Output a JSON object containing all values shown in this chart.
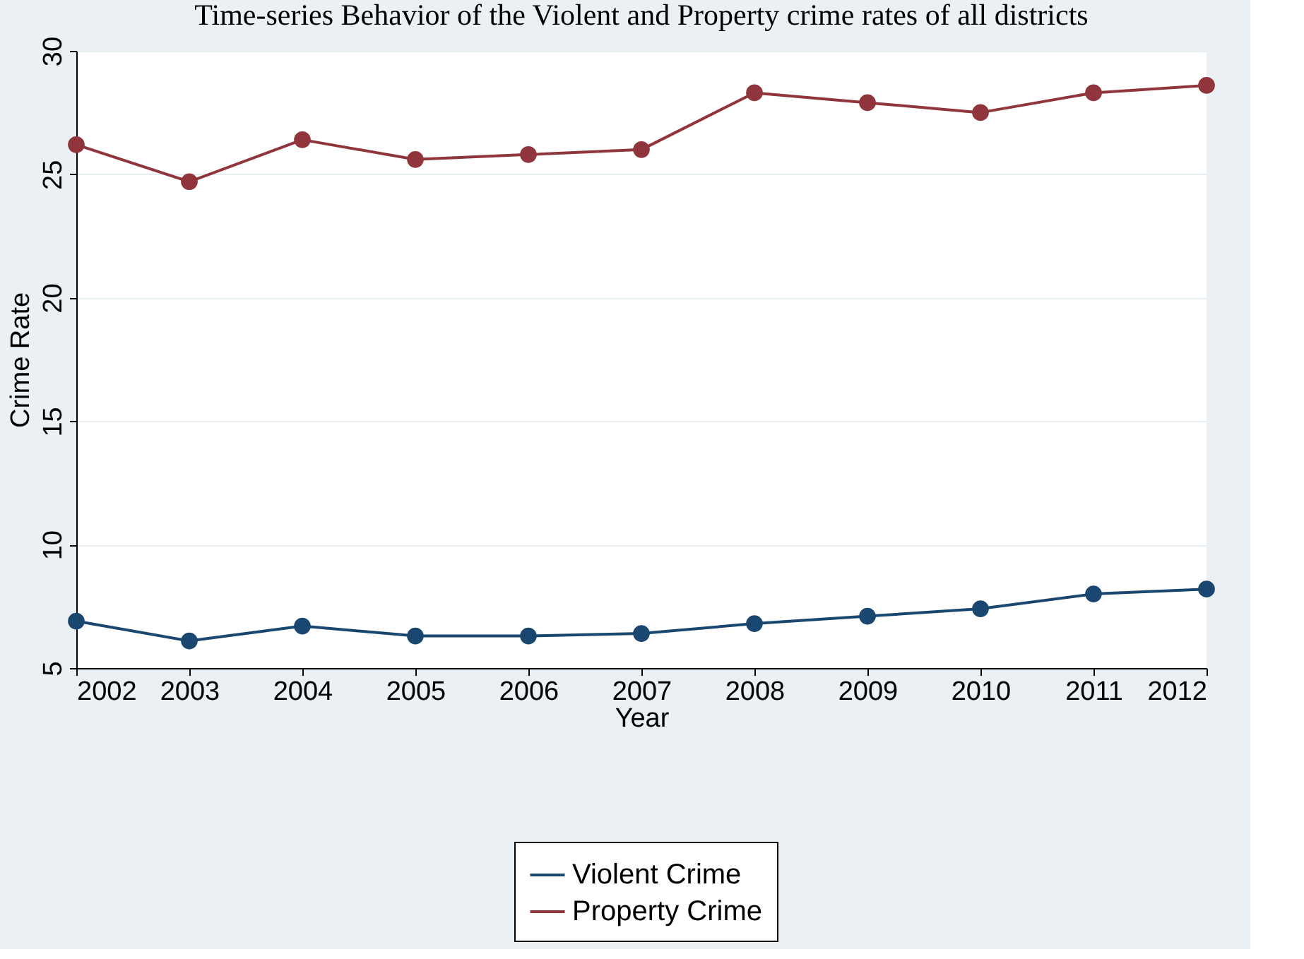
{
  "chart_data": {
    "type": "line",
    "title": "Time-series Behavior of the Violent and Property crime rates of all districts",
    "xlabel": "Year",
    "ylabel": "Crime Rate",
    "x": [
      2002,
      2003,
      2004,
      2005,
      2006,
      2007,
      2008,
      2009,
      2010,
      2011,
      2012
    ],
    "series": [
      {
        "name": "Violent Crime",
        "color": "#1a476f",
        "values": [
          6.9,
          6.1,
          6.7,
          6.3,
          6.3,
          6.4,
          6.8,
          7.1,
          7.4,
          8.0,
          8.2
        ]
      },
      {
        "name": "Property Crime",
        "color": "#90353b",
        "values": [
          26.2,
          24.7,
          26.4,
          25.6,
          25.8,
          26.0,
          28.3,
          27.9,
          27.5,
          28.3,
          28.6
        ]
      }
    ],
    "xlim": [
      2002,
      2012
    ],
    "xticks": [
      2002,
      2003,
      2004,
      2005,
      2006,
      2007,
      2008,
      2009,
      2010,
      2011,
      2012
    ],
    "ylim": [
      5,
      30
    ],
    "yticks": [
      5,
      10,
      15,
      20,
      25,
      30
    ],
    "grid": "y",
    "legend": "bottom",
    "marker": "circle",
    "line_style": "solid"
  }
}
